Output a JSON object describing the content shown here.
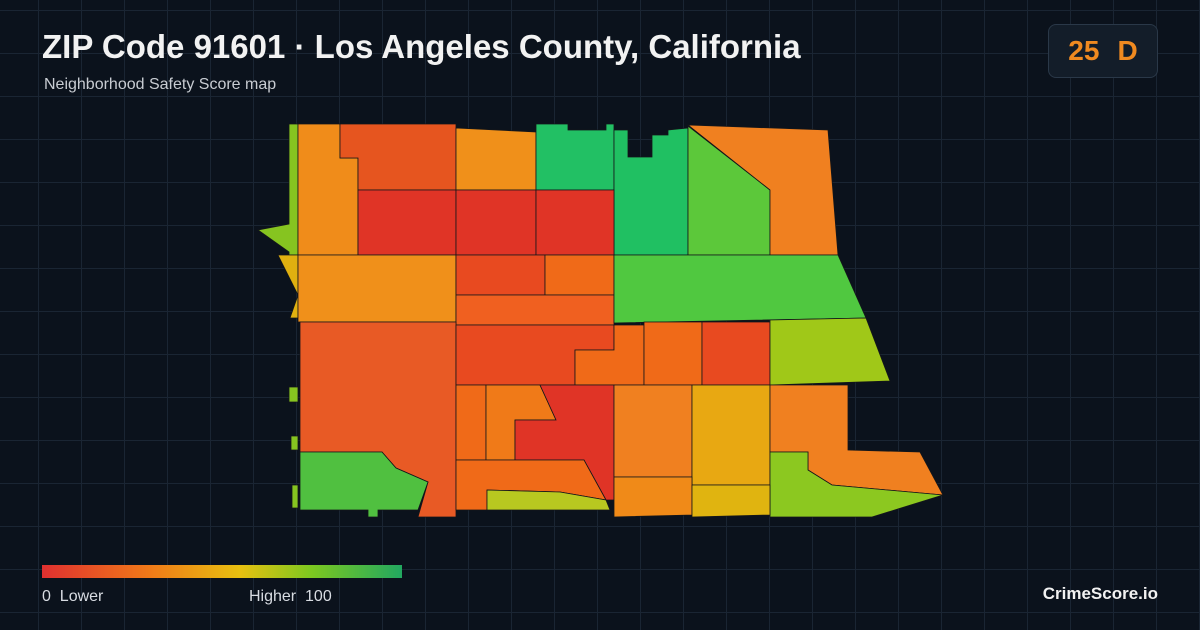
{
  "header": {
    "title": "ZIP Code 91601 · Los Angeles County, California",
    "subtitle": "Neighborhood Safety Score map"
  },
  "score": {
    "value": 25,
    "grade": "D"
  },
  "legend": {
    "min": 0,
    "min_label": "Lower",
    "max_label": "Higher",
    "max": 100
  },
  "footer": {
    "brand": "CrimeScore.io"
  }
}
